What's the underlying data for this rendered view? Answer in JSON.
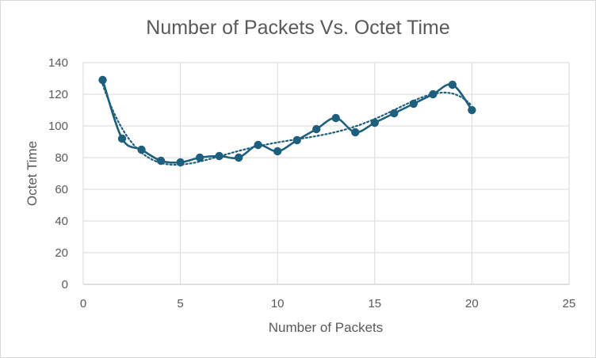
{
  "chart_data": {
    "type": "scatter",
    "title": "Number of Packets Vs. Octet Time",
    "xlabel": "Number of Packets",
    "ylabel": "Octet Time",
    "xlim": [
      0,
      25
    ],
    "ylim": [
      0,
      140
    ],
    "xticks": [
      "0",
      "5",
      "10",
      "15",
      "20",
      "25"
    ],
    "yticks": [
      "0",
      "20",
      "40",
      "60",
      "80",
      "100",
      "120",
      "140"
    ],
    "grid": true,
    "legend": "none",
    "series": [
      {
        "x": [
          1,
          2,
          3,
          4,
          5,
          6,
          7,
          8,
          9,
          10,
          11,
          12,
          13,
          14,
          15,
          16,
          17,
          18,
          19,
          20
        ],
        "values": [
          129,
          92,
          85,
          78,
          77,
          80,
          81,
          80,
          88,
          84,
          91,
          98,
          105,
          96,
          102,
          108,
          114,
          120,
          126,
          110
        ],
        "line": "smoothed",
        "marker": "circle",
        "color": "#1f5f7e"
      }
    ],
    "trendline": {
      "style": "dotted",
      "type": "polynomial",
      "color": "#1f5f7e"
    }
  }
}
